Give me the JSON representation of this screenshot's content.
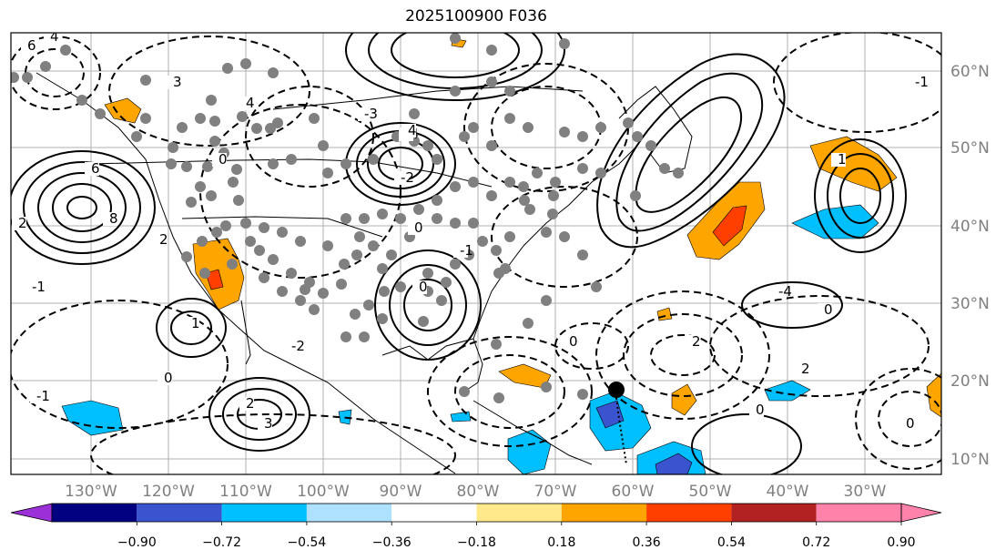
{
  "title": "2025100900 F036",
  "lon_labels": [
    "130°W",
    "120°W",
    "110°W",
    "100°W",
    "90°W",
    "80°W",
    "70°W",
    "60°W",
    "50°W",
    "40°W",
    "30°W"
  ],
  "lat_labels": [
    "60°N",
    "50°N",
    "40°N",
    "30°N",
    "20°N",
    "10°N"
  ],
  "colorbar": {
    "tick_labels": [
      "−0.90",
      "−0.72",
      "−0.54",
      "−0.36",
      "−0.18",
      "0.18",
      "0.36",
      "0.54",
      "0.72",
      "0.90"
    ],
    "colors": [
      "#9b30d8",
      "#000080",
      "#3a53cf",
      "#00bfff",
      "#aee0ff",
      "#ffffff",
      "#ffe98a",
      "#ffa500",
      "#ff3f00",
      "#b22222",
      "#ff82ab"
    ]
  },
  "contour_labels": [
    "6",
    "4",
    "6",
    "8",
    "3",
    "4",
    "2",
    "2",
    "0",
    "-3",
    "-4",
    "-2",
    "-1",
    "0",
    "1",
    "2",
    "3",
    "-2",
    "4",
    "0",
    "-1",
    "0",
    "2",
    "1",
    "-1",
    "0",
    "0",
    "-4",
    "2",
    "-1",
    "0",
    "0"
  ],
  "colors": {
    "positive": "#ffa500",
    "negative": "#00bfff",
    "marker": "#000000",
    "station": "#808080",
    "grid": "#b0b0b0"
  }
}
